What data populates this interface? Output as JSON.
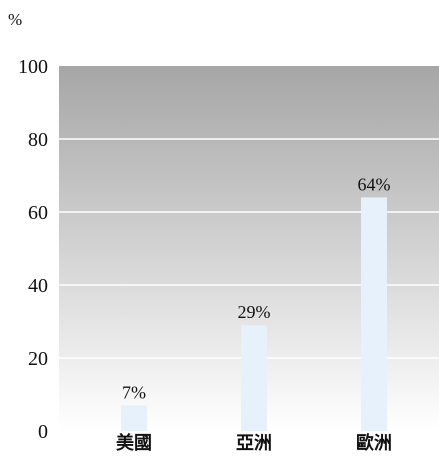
{
  "chart_data": {
    "type": "bar",
    "unit_label": "%",
    "categories": [
      "美國",
      "亞洲",
      "歐洲"
    ],
    "values": [
      7,
      29,
      64
    ],
    "data_labels": [
      "7%",
      "29%",
      "64%"
    ],
    "yticks": [
      "0",
      "20",
      "40",
      "60",
      "80",
      "100"
    ],
    "ytick_values": [
      0,
      20,
      40,
      60,
      80,
      100
    ],
    "ylim": [
      0,
      100
    ],
    "grid": true,
    "legend": "none",
    "colors": {
      "bar": "#e6f1fb",
      "gradient_top": "#a6a6a6",
      "gradient_bottom": "#ffffff",
      "grid": "#ffffff"
    }
  }
}
